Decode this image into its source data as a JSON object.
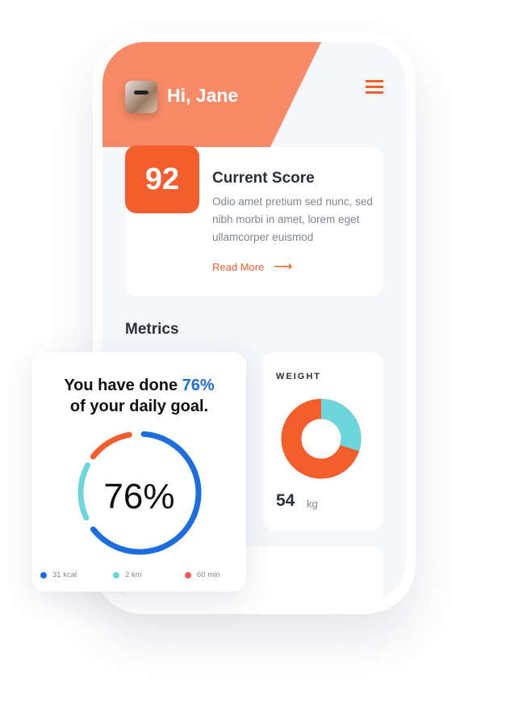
{
  "header": {
    "greeting": "Hi, Jane",
    "avatar": "user-photo",
    "menu_icon": "hamburger-icon"
  },
  "score": {
    "value": "92",
    "title": "Current Score",
    "description": "Odio amet pretium sed nunc, sed nibh morbi in amet, lorem eget ullamcorper euismod",
    "link": "Read More",
    "link_icon": "arrow-right-icon"
  },
  "metrics": {
    "title": "Metrics"
  },
  "weight": {
    "label": "WEIGHT",
    "value": "54",
    "unit": "kg",
    "chart": {
      "type": "pie",
      "donut": true,
      "slices": [
        {
          "value": 30,
          "color": "#6dd5dc"
        },
        {
          "value": 70,
          "color": "#f45d2c"
        }
      ]
    }
  },
  "goal": {
    "text_before": "You have done ",
    "highlight": "76%",
    "text_after": "of your daily goal.",
    "center": "76%",
    "legend": [
      {
        "label": "31 kcal",
        "color": "#1c6de0"
      },
      {
        "label": "2 km",
        "color": "#6dd5dc"
      },
      {
        "label": "60 min",
        "color": "#ef5a5a"
      }
    ],
    "ring_colors": {
      "blue": "#1c6de0",
      "cyan": "#6dd5dc",
      "orange": "#f45d2c"
    }
  },
  "colors": {
    "accent": "#f45d2c",
    "header": "#f88a67"
  }
}
